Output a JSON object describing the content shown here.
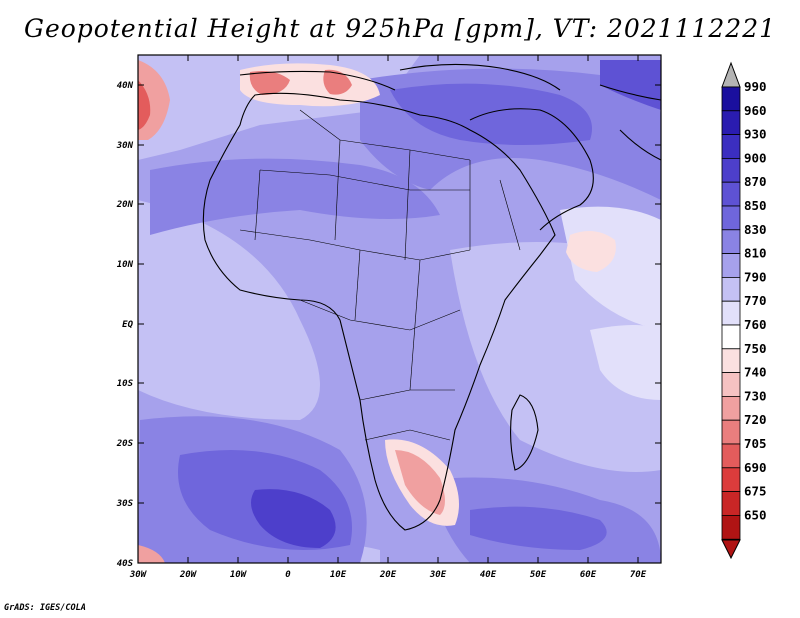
{
  "title": "Geopotential Height at 925hPa [gpm], VT: 2021112221",
  "credit": "GrADS: IGES/COLA",
  "lat_labels": [
    "40N",
    "30N",
    "20N",
    "10N",
    "EQ",
    "10S",
    "20S",
    "30S",
    "40S"
  ],
  "lon_labels": [
    "30W",
    "20W",
    "10W",
    "0",
    "10E",
    "20E",
    "30E",
    "40E",
    "50E",
    "60E",
    "70E"
  ],
  "colorbar": {
    "levels": [
      "990",
      "960",
      "930",
      "900",
      "870",
      "850",
      "830",
      "810",
      "790",
      "770",
      "760",
      "750",
      "740",
      "730",
      "720",
      "705",
      "690",
      "675",
      "650"
    ],
    "colors": [
      "#1a0f9e",
      "#2a1cb0",
      "#3b2ec0",
      "#4d3fcb",
      "#5e52d4",
      "#6f66dc",
      "#8a83e4",
      "#a6a1ec",
      "#c4c1f4",
      "#e2e0fa",
      "#ffffff",
      "#fbe0e0",
      "#f6c2c2",
      "#f0a0a0",
      "#ea7e7e",
      "#e35c5c",
      "#dc3c3c",
      "#c92626",
      "#b01414"
    ]
  }
}
